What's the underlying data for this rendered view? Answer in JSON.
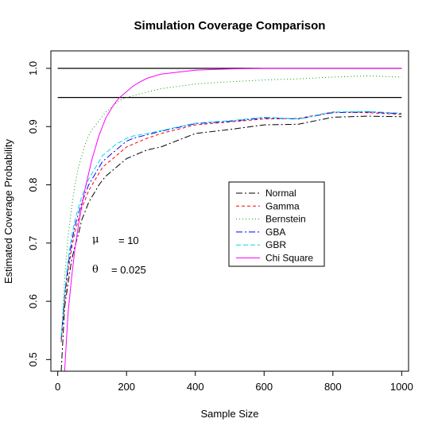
{
  "chart_data": {
    "type": "line",
    "title": "Simulation Coverage Comparison",
    "xlabel": "Sample Size",
    "ylabel": "Estimated Coverage Probability",
    "xlim": [
      -20,
      1020
    ],
    "ylim": [
      0.48,
      1.03
    ],
    "x_ticks": [
      0,
      200,
      400,
      600,
      800,
      1000
    ],
    "x_tick_labels": [
      "0",
      "200",
      "400",
      "600",
      "800",
      "1000"
    ],
    "y_ticks": [
      0.5,
      0.6,
      0.7,
      0.8,
      0.9,
      1.0
    ],
    "y_tick_labels": [
      "0.5",
      "0.6",
      "0.7",
      "0.8",
      "0.9",
      "1.0"
    ],
    "grid": false,
    "legend_position": "center-right",
    "reference_lines": [
      1.0,
      0.95
    ],
    "annotations": [
      {
        "symbol": "μ",
        "label": "= 10",
        "x": 100,
        "y": 0.7
      },
      {
        "symbol": "θ",
        "label": "= 0.025",
        "x": 100,
        "y": 0.648
      }
    ],
    "series": [
      {
        "name": "Normal",
        "color": "#000000",
        "dash": "8,3,2,3",
        "x": [
          10,
          20,
          30,
          40,
          50,
          60,
          70,
          80,
          90,
          100,
          110,
          120,
          130,
          140,
          150,
          160,
          170,
          180,
          190,
          200,
          220,
          240,
          260,
          300,
          400,
          500,
          600,
          700,
          800,
          900,
          1000
        ],
        "y": [
          0.48,
          0.59,
          0.63,
          0.67,
          0.695,
          0.715,
          0.74,
          0.755,
          0.77,
          0.78,
          0.79,
          0.8,
          0.808,
          0.815,
          0.82,
          0.825,
          0.83,
          0.835,
          0.84,
          0.845,
          0.85,
          0.855,
          0.86,
          0.865,
          0.888,
          0.895,
          0.903,
          0.904,
          0.916,
          0.918,
          0.917
        ]
      },
      {
        "name": "Gamma",
        "color": "#ff0000",
        "dash": "4,3",
        "x": [
          10,
          20,
          30,
          40,
          50,
          60,
          70,
          80,
          90,
          100,
          110,
          120,
          130,
          140,
          150,
          160,
          170,
          180,
          190,
          200,
          220,
          240,
          260,
          300,
          400,
          500,
          600,
          700,
          800,
          900,
          1000
        ],
        "y": [
          0.53,
          0.6,
          0.65,
          0.69,
          0.72,
          0.74,
          0.76,
          0.775,
          0.79,
          0.8,
          0.81,
          0.82,
          0.83,
          0.835,
          0.84,
          0.845,
          0.85,
          0.855,
          0.86,
          0.865,
          0.87,
          0.875,
          0.88,
          0.888,
          0.903,
          0.908,
          0.913,
          0.914,
          0.925,
          0.924,
          0.921
        ]
      },
      {
        "name": "Bernstein",
        "color": "#00a000",
        "dash": "1,3",
        "x": [
          10,
          20,
          30,
          40,
          50,
          60,
          70,
          80,
          90,
          100,
          120,
          140,
          160,
          180,
          200,
          250,
          300,
          400,
          500,
          600,
          700,
          800,
          900,
          1000
        ],
        "y": [
          0.53,
          0.64,
          0.71,
          0.76,
          0.8,
          0.83,
          0.85,
          0.87,
          0.885,
          0.895,
          0.91,
          0.925,
          0.935,
          0.945,
          0.95,
          0.958,
          0.965,
          0.973,
          0.977,
          0.98,
          0.982,
          0.985,
          0.987,
          0.985
        ]
      },
      {
        "name": "GBA",
        "color": "#0000ff",
        "dash": "8,3,2,3",
        "x": [
          10,
          20,
          30,
          40,
          50,
          60,
          70,
          80,
          90,
          100,
          110,
          120,
          130,
          140,
          150,
          160,
          170,
          180,
          190,
          200,
          220,
          240,
          260,
          300,
          400,
          500,
          600,
          700,
          800,
          900,
          1000
        ],
        "y": [
          0.535,
          0.61,
          0.66,
          0.7,
          0.73,
          0.75,
          0.77,
          0.785,
          0.8,
          0.81,
          0.82,
          0.83,
          0.84,
          0.845,
          0.85,
          0.855,
          0.86,
          0.865,
          0.87,
          0.875,
          0.88,
          0.883,
          0.886,
          0.892,
          0.905,
          0.909,
          0.915,
          0.913,
          0.924,
          0.925,
          0.922
        ]
      },
      {
        "name": "GBR",
        "color": "#00d8e8",
        "dash": "6,3",
        "x": [
          10,
          20,
          30,
          40,
          50,
          60,
          70,
          80,
          90,
          100,
          110,
          120,
          130,
          140,
          150,
          160,
          170,
          180,
          190,
          200,
          220,
          240,
          260,
          300,
          400,
          500,
          600,
          700,
          800,
          900,
          1000
        ],
        "y": [
          0.54,
          0.615,
          0.67,
          0.71,
          0.74,
          0.76,
          0.78,
          0.795,
          0.81,
          0.82,
          0.83,
          0.84,
          0.85,
          0.855,
          0.86,
          0.865,
          0.87,
          0.873,
          0.876,
          0.88,
          0.884,
          0.886,
          0.888,
          0.893,
          0.906,
          0.91,
          0.916,
          0.913,
          0.925,
          0.926,
          0.923
        ]
      },
      {
        "name": "Chi Square",
        "color": "#ff00ff",
        "dash": "",
        "x": [
          20,
          30,
          40,
          50,
          60,
          70,
          80,
          90,
          100,
          110,
          120,
          130,
          140,
          150,
          160,
          170,
          180,
          190,
          200,
          220,
          240,
          260,
          300,
          400,
          500,
          600,
          700,
          800,
          900,
          1000
        ],
        "y": [
          0.48,
          0.58,
          0.64,
          0.69,
          0.73,
          0.765,
          0.795,
          0.82,
          0.845,
          0.865,
          0.885,
          0.9,
          0.915,
          0.925,
          0.935,
          0.943,
          0.95,
          0.955,
          0.96,
          0.97,
          0.977,
          0.983,
          0.99,
          0.997,
          0.999,
          1.0,
          1.0,
          1.0,
          1.0,
          1.0
        ]
      }
    ]
  }
}
